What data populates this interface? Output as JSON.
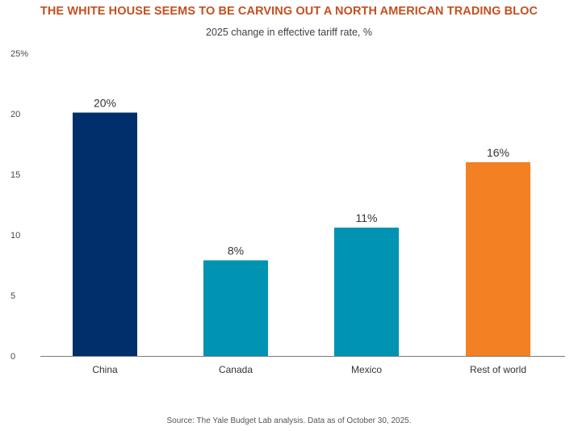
{
  "header": {
    "title": "THE WHITE HOUSE SEEMS TO BE CARVING OUT A NORTH AMERICAN TRADING BLOC",
    "subtitle": "2025 change in effective tariff rate, %"
  },
  "footer": {
    "source": "Source: The Yale Budget Lab analysis. Data as of October 30, 2025."
  },
  "chart_data": {
    "type": "bar",
    "title": "THE WHITE HOUSE SEEMS TO BE CARVING OUT A NORTH AMERICAN TRADING BLOC",
    "subtitle": "2025 change in effective tariff rate, %",
    "xlabel": "",
    "ylabel": "",
    "ylim": [
      0,
      25
    ],
    "yticks": [
      0,
      5,
      10,
      15,
      20,
      25
    ],
    "ytick_labels": [
      "0",
      "5",
      "10",
      "15",
      "20",
      "25%"
    ],
    "grid": false,
    "categories": [
      "China",
      "Canada",
      "Mexico",
      "Rest of world"
    ],
    "values": [
      20.1,
      7.9,
      10.6,
      16.0
    ],
    "data_labels": [
      "20%",
      "8%",
      "11%",
      "16%"
    ],
    "colors": [
      "#002f6c",
      "#0093b2",
      "#0093b2",
      "#f38124"
    ]
  }
}
